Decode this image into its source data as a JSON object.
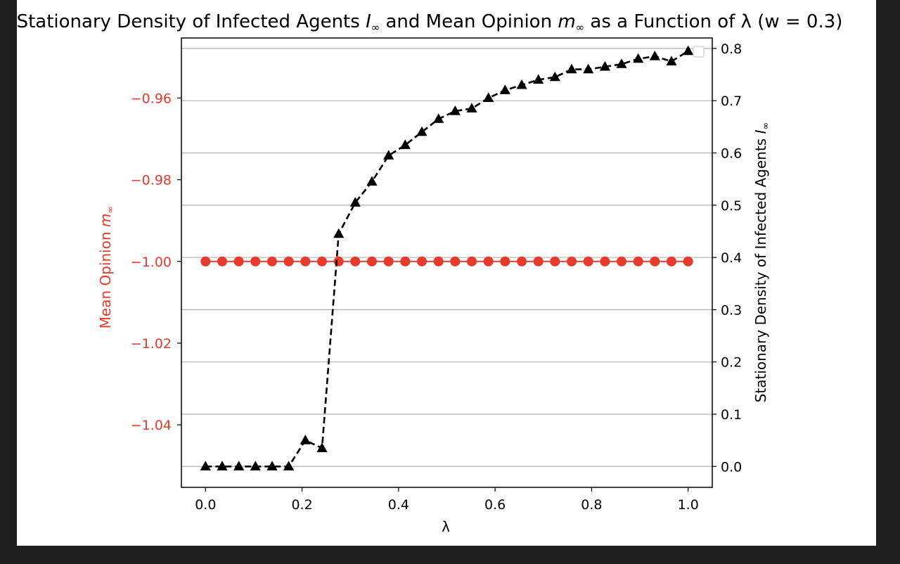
{
  "chart_data": {
    "type": "line",
    "title": "Stationary Density of Infected Agents I∞ and Mean Opinion m∞ as a Function of λ (w = 0.3)",
    "title_parts": {
      "prefix": "Stationary Density of Infected Agents ",
      "i_var": "I",
      "inf1": "∞",
      "middle": " and Mean Opinion ",
      "m_var": "m",
      "inf2": "∞",
      "suffix": " as a Function of λ (w = 0.3)"
    },
    "xlabel": "λ",
    "ylabel_left": {
      "text": "Mean Opinion ",
      "var": "m",
      "sub": "∞"
    },
    "ylabel_right": {
      "text": "Stationary Density of Infected Agents ",
      "var": "I",
      "sub": "∞"
    },
    "xlim": [
      -0.05,
      1.05
    ],
    "ylim_left": [
      -1.0553,
      -0.9453
    ],
    "ylim_right": [
      -0.04,
      0.82
    ],
    "x_ticks": [
      0.0,
      0.2,
      0.4,
      0.6,
      0.8,
      1.0
    ],
    "x_tick_labels": [
      "0.0",
      "0.2",
      "0.4",
      "0.6",
      "0.8",
      "1.0"
    ],
    "y_left_ticks": [
      -0.96,
      -0.98,
      -1.0,
      -1.02,
      -1.04
    ],
    "y_left_tick_labels": [
      "−0.96",
      "−0.98",
      "−1.00",
      "−1.02",
      "−1.04"
    ],
    "y_right_ticks": [
      0.0,
      0.1,
      0.2,
      0.3,
      0.4,
      0.5,
      0.6,
      0.7,
      0.8
    ],
    "y_right_tick_labels": [
      "0.0",
      "0.1",
      "0.2",
      "0.3",
      "0.4",
      "0.5",
      "0.6",
      "0.7",
      "0.8"
    ],
    "grid": "horizontal, right axis",
    "legend": "top-right (empty)",
    "x": [
      0.0,
      0.0345,
      0.069,
      0.1034,
      0.1379,
      0.1724,
      0.2069,
      0.2414,
      0.2759,
      0.3103,
      0.3448,
      0.3793,
      0.4138,
      0.4483,
      0.4828,
      0.5172,
      0.5517,
      0.5862,
      0.6207,
      0.6552,
      0.6897,
      0.7241,
      0.7586,
      0.7931,
      0.8276,
      0.8621,
      0.8966,
      0.931,
      0.9655,
      1.0
    ],
    "series": [
      {
        "name": "Mean Opinion",
        "axis": "left",
        "color": "#e8392d",
        "marker": "circle",
        "linestyle": "solid",
        "values": [
          -1.0,
          -1.0,
          -1.0,
          -1.0,
          -1.0,
          -1.0,
          -1.0,
          -1.0,
          -1.0,
          -1.0,
          -1.0,
          -1.0,
          -1.0,
          -1.0,
          -1.0,
          -1.0,
          -1.0,
          -1.0,
          -1.0,
          -1.0,
          -1.0,
          -1.0,
          -1.0,
          -1.0,
          -1.0,
          -1.0,
          -1.0,
          -1.0,
          -1.0,
          -1.0
        ]
      },
      {
        "name": "Stationary Density of Infected Agents",
        "axis": "right",
        "color": "#000000",
        "marker": "triangle",
        "linestyle": "dashed",
        "values": [
          0.0,
          0.0,
          0.0,
          0.0,
          0.0,
          0.0,
          0.05,
          0.035,
          0.445,
          0.505,
          0.545,
          0.595,
          0.615,
          0.64,
          0.665,
          0.68,
          0.685,
          0.705,
          0.72,
          0.73,
          0.74,
          0.745,
          0.76,
          0.76,
          0.765,
          0.77,
          0.78,
          0.785,
          0.775,
          0.795
        ]
      }
    ],
    "colors": {
      "left_axis": "#e8392d",
      "right_axis": "#333333",
      "grid": "#b0b0b0"
    }
  }
}
